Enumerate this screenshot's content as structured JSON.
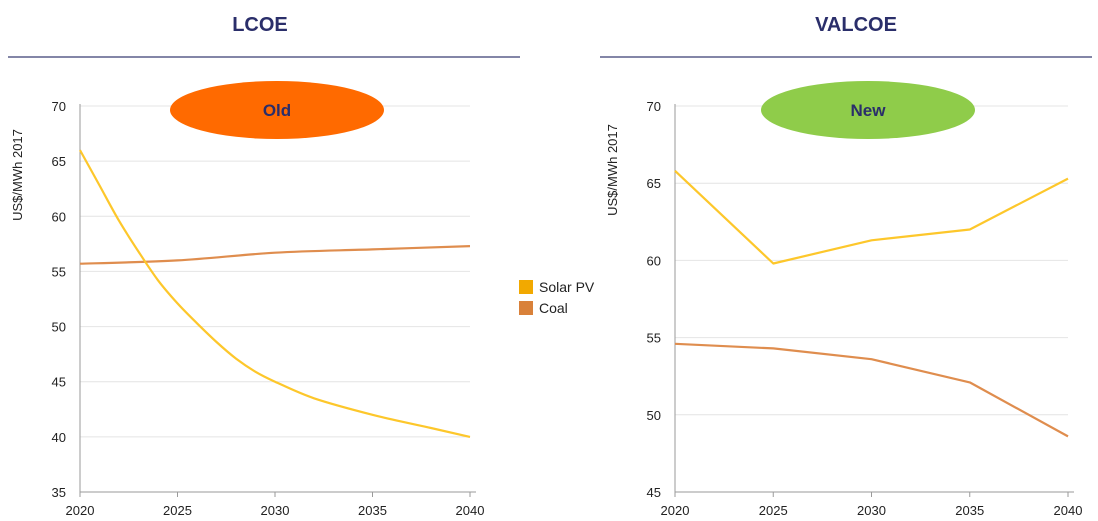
{
  "colors": {
    "title": "#2a2e6a",
    "title_rule": "#5a5f8a",
    "solar": "#fdc72b",
    "coal": "#df8d4e",
    "legend_solar": "#f2a900",
    "legend_coal": "#d9813a"
  },
  "legend": [
    {
      "label": "Solar PV",
      "color": "#f2a900"
    },
    {
      "label": "Coal",
      "color": "#d9813a"
    }
  ],
  "chart_data": [
    {
      "type": "line",
      "title": "LCOE",
      "badge": {
        "label": "Old",
        "color": "#ff6a00"
      },
      "ylabel": "US$/MWh 2017",
      "xlabel": "",
      "xlim": [
        2020,
        2040
      ],
      "ylim": [
        35,
        70
      ],
      "x_ticks": [
        2020,
        2025,
        2030,
        2035,
        2040
      ],
      "y_ticks": [
        35,
        40,
        45,
        50,
        55,
        60,
        65,
        70
      ],
      "grid": true,
      "series": [
        {
          "name": "Solar PV",
          "color": "#fdc72b",
          "curve": "smooth",
          "x": [
            2020,
            2021,
            2022,
            2023,
            2024,
            2025,
            2026,
            2027,
            2028,
            2029,
            2030,
            2032,
            2035,
            2038,
            2040
          ],
          "y": [
            66,
            62.8,
            59.6,
            56.8,
            54.2,
            52.1,
            50.3,
            48.6,
            47.1,
            45.9,
            45.0,
            43.5,
            42.0,
            40.8,
            40.0
          ]
        },
        {
          "name": "Coal",
          "color": "#df8d4e",
          "curve": "smooth",
          "x": [
            2020,
            2025,
            2030,
            2035,
            2040
          ],
          "y": [
            55.7,
            56.0,
            56.7,
            57.0,
            57.3
          ]
        }
      ]
    },
    {
      "type": "line",
      "title": "VALCOE",
      "badge": {
        "label": "New",
        "color": "#8fcc4a"
      },
      "ylabel": "US$/MWh 2017",
      "xlabel": "",
      "xlim": [
        2020,
        2040
      ],
      "ylim": [
        45,
        70
      ],
      "x_ticks": [
        2020,
        2025,
        2030,
        2035,
        2040
      ],
      "y_ticks": [
        45,
        50,
        55,
        60,
        65,
        70
      ],
      "grid": true,
      "series": [
        {
          "name": "Solar PV",
          "color": "#fdc72b",
          "curve": "linear",
          "x": [
            2020,
            2025,
            2030,
            2035,
            2040
          ],
          "y": [
            65.8,
            59.8,
            61.3,
            62.0,
            65.3
          ]
        },
        {
          "name": "Coal",
          "color": "#df8d4e",
          "curve": "linear",
          "x": [
            2020,
            2025,
            2030,
            2035,
            2040
          ],
          "y": [
            54.6,
            54.3,
            53.6,
            52.1,
            48.6
          ]
        }
      ]
    }
  ]
}
